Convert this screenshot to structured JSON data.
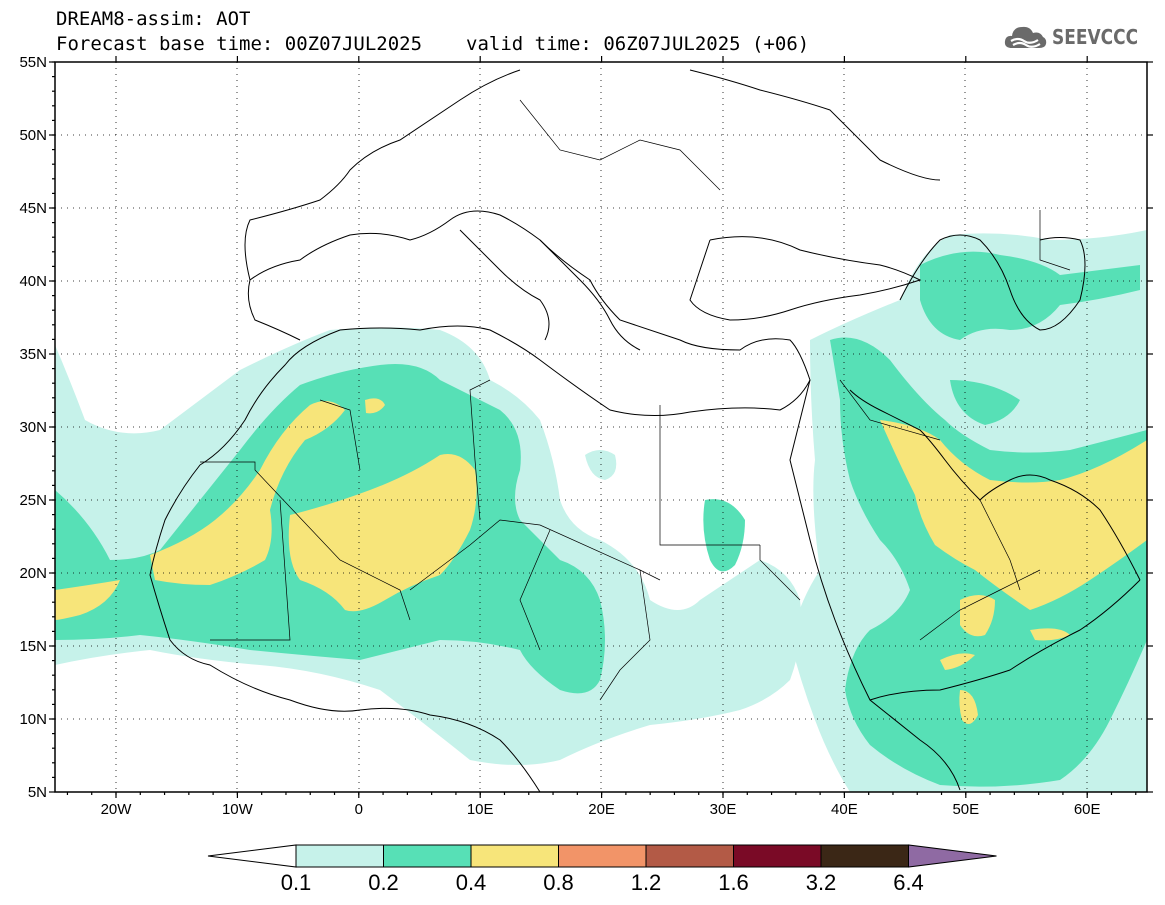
{
  "header": {
    "title": "DREAM8-assim: AOT",
    "base_time": "Forecast base time: 00Z07JUL2025",
    "valid_time": "valid time: 06Z07JUL2025 (+06)"
  },
  "logo": {
    "text": "SEEVCCC",
    "icon": "cloud-icon"
  },
  "map": {
    "lat_ticks": [
      "55N",
      "50N",
      "45N",
      "40N",
      "35N",
      "30N",
      "25N",
      "20N",
      "15N",
      "10N",
      "5N"
    ],
    "lon_ticks": [
      "20W",
      "10W",
      "0",
      "10E",
      "20E",
      "30E",
      "40E",
      "50E",
      "60E"
    ]
  },
  "legend": {
    "labels": [
      "0.1",
      "0.2",
      "0.4",
      "0.8",
      "1.2",
      "1.6",
      "3.2",
      "6.4"
    ],
    "colors": [
      "#c6f2ea",
      "#57e0b6",
      "#f7e57a",
      "#f29468",
      "#b35a46",
      "#7a0a26",
      "#3b2716",
      "#8f6aa3"
    ]
  },
  "colors": {
    "c1": "#c6f2ea",
    "c2": "#57e0b6",
    "c3": "#f7e57a"
  }
}
